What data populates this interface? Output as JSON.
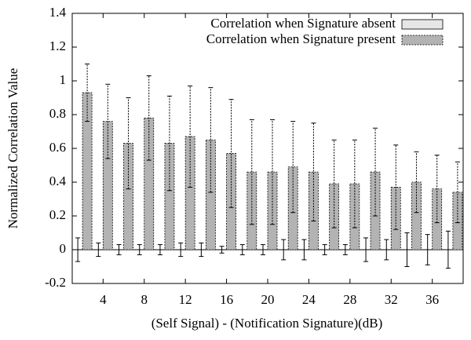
{
  "chart_data": {
    "type": "bar",
    "xlabel": "(Self Signal) - (Notification Signature)(dB)",
    "ylabel": "Normalized Correlation Value",
    "categories": [
      null,
      "4",
      null,
      "8",
      null,
      "12",
      null,
      "16",
      null,
      "20",
      null,
      "24",
      null,
      "28",
      null,
      "32",
      null,
      "36",
      null
    ],
    "series": [
      {
        "name": "Correlation when Signature absent",
        "color": "#e6e6e6",
        "values": [
          0,
          0,
          0,
          0,
          0,
          0,
          0,
          0,
          0,
          0,
          0,
          0,
          0,
          0,
          0,
          0,
          0,
          0,
          0
        ],
        "errors": [
          0.07,
          0.04,
          0.03,
          0.03,
          0.03,
          0.04,
          0.04,
          0.02,
          0.03,
          0.03,
          0.06,
          0.06,
          0.03,
          0.03,
          0.07,
          0.06,
          0.1,
          0.09,
          0.11
        ]
      },
      {
        "name": "Correlation when Signature present",
        "color": "#b3b3b3",
        "values": [
          0.93,
          0.76,
          0.63,
          0.78,
          0.63,
          0.67,
          0.65,
          0.57,
          0.46,
          0.46,
          0.49,
          0.46,
          0.39,
          0.39,
          0.46,
          0.37,
          0.4,
          0.36,
          0.34
        ],
        "errors": [
          0.17,
          0.22,
          0.27,
          0.25,
          0.28,
          0.3,
          0.31,
          0.32,
          0.31,
          0.31,
          0.27,
          0.29,
          0.26,
          0.26,
          0.26,
          0.25,
          0.18,
          0.2,
          0.18
        ]
      }
    ],
    "ylim": [
      -0.2,
      1.4
    ],
    "yticks": [
      -0.2,
      0,
      0.2,
      0.4,
      0.6,
      0.8,
      1,
      1.2,
      1.4
    ],
    "legend": "upper right"
  }
}
